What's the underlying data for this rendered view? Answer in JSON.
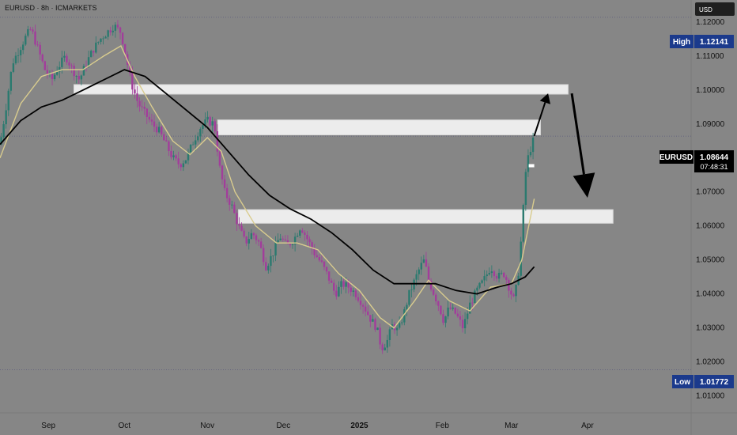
{
  "header": {
    "title": "EURUSD · 8h · ICMARKETS",
    "currency_button": "USD"
  },
  "colors": {
    "background": "#868686",
    "axis_panel": "#868686",
    "candle_up": "#2b7a6f",
    "candle_down": "#a23d9b",
    "ema_fast": "#d9cc8e",
    "ema_slow": "#000000",
    "zone_fill": "#ececec",
    "label_blue": "#1b3a8c",
    "label_black": "#000000"
  },
  "price_labels": {
    "high": {
      "tag": "High",
      "value": "1.12141",
      "price": 1.12141
    },
    "low": {
      "tag": "Low",
      "value": "1.01772",
      "price": 1.01772
    },
    "current": {
      "tag": "EURUSD",
      "value": "1.08644",
      "countdown": "07:48:31",
      "price": 1.08644
    }
  },
  "chart_data": {
    "type": "candlestick",
    "symbol": "EURUSD",
    "timeframe": "8h",
    "broker": "ICMARKETS",
    "y_ticks": [
      "1.01000",
      "1.02000",
      "1.03000",
      "1.04000",
      "1.05000",
      "1.06000",
      "1.07000",
      "1.08000",
      "1.09000",
      "1.10000",
      "1.11000",
      "1.12000"
    ],
    "y_tick_values": [
      1.01,
      1.02,
      1.03,
      1.04,
      1.05,
      1.06,
      1.07,
      1.08,
      1.09,
      1.1,
      1.11,
      1.12
    ],
    "ylim": [
      1.005,
      1.1265
    ],
    "x_ticks": [
      {
        "label": "Sep",
        "t": 0.07
      },
      {
        "label": "Oct",
        "t": 0.18
      },
      {
        "label": "Nov",
        "t": 0.3
      },
      {
        "label": "Dec",
        "t": 0.41
      },
      {
        "label": "2025",
        "t": 0.52
      },
      {
        "label": "Feb",
        "t": 0.64
      },
      {
        "label": "Mar",
        "t": 0.74
      },
      {
        "label": "Apr",
        "t": 0.85
      }
    ],
    "price_series": [
      {
        "t": 0.0,
        "p": 1.084
      },
      {
        "t": 0.008,
        "p": 1.094
      },
      {
        "t": 0.018,
        "p": 1.108
      },
      {
        "t": 0.028,
        "p": 1.112
      },
      {
        "t": 0.038,
        "p": 1.116
      },
      {
        "t": 0.045,
        "p": 1.118
      },
      {
        "t": 0.055,
        "p": 1.112
      },
      {
        "t": 0.065,
        "p": 1.106
      },
      {
        "t": 0.075,
        "p": 1.103
      },
      {
        "t": 0.085,
        "p": 1.107
      },
      {
        "t": 0.095,
        "p": 1.11
      },
      {
        "t": 0.105,
        "p": 1.106
      },
      {
        "t": 0.115,
        "p": 1.103
      },
      {
        "t": 0.125,
        "p": 1.108
      },
      {
        "t": 0.135,
        "p": 1.112
      },
      {
        "t": 0.145,
        "p": 1.115
      },
      {
        "t": 0.155,
        "p": 1.117
      },
      {
        "t": 0.165,
        "p": 1.119
      },
      {
        "t": 0.175,
        "p": 1.117
      },
      {
        "t": 0.182,
        "p": 1.11
      },
      {
        "t": 0.19,
        "p": 1.102
      },
      {
        "t": 0.2,
        "p": 1.096
      },
      {
        "t": 0.21,
        "p": 1.093
      },
      {
        "t": 0.22,
        "p": 1.09
      },
      {
        "t": 0.23,
        "p": 1.088
      },
      {
        "t": 0.24,
        "p": 1.084
      },
      {
        "t": 0.25,
        "p": 1.08
      },
      {
        "t": 0.26,
        "p": 1.078
      },
      {
        "t": 0.27,
        "p": 1.08
      },
      {
        "t": 0.28,
        "p": 1.085
      },
      {
        "t": 0.29,
        "p": 1.089
      },
      {
        "t": 0.3,
        "p": 1.091
      },
      {
        "t": 0.31,
        "p": 1.09
      },
      {
        "t": 0.318,
        "p": 1.077
      },
      {
        "t": 0.325,
        "p": 1.07
      },
      {
        "t": 0.335,
        "p": 1.066
      },
      {
        "t": 0.345,
        "p": 1.06
      },
      {
        "t": 0.355,
        "p": 1.055
      },
      {
        "t": 0.365,
        "p": 1.058
      },
      {
        "t": 0.375,
        "p": 1.055
      },
      {
        "t": 0.385,
        "p": 1.048
      },
      {
        "t": 0.395,
        "p": 1.052
      },
      {
        "t": 0.405,
        "p": 1.057
      },
      {
        "t": 0.415,
        "p": 1.054
      },
      {
        "t": 0.425,
        "p": 1.056
      },
      {
        "t": 0.435,
        "p": 1.06
      },
      {
        "t": 0.445,
        "p": 1.056
      },
      {
        "t": 0.455,
        "p": 1.052
      },
      {
        "t": 0.465,
        "p": 1.049
      },
      {
        "t": 0.475,
        "p": 1.045
      },
      {
        "t": 0.485,
        "p": 1.04
      },
      {
        "t": 0.495,
        "p": 1.043
      },
      {
        "t": 0.505,
        "p": 1.042
      },
      {
        "t": 0.515,
        "p": 1.04
      },
      {
        "t": 0.525,
        "p": 1.037
      },
      {
        "t": 0.535,
        "p": 1.033
      },
      {
        "t": 0.545,
        "p": 1.03
      },
      {
        "t": 0.552,
        "p": 1.024
      },
      {
        "t": 0.56,
        "p": 1.026
      },
      {
        "t": 0.568,
        "p": 1.031
      },
      {
        "t": 0.576,
        "p": 1.029
      },
      {
        "t": 0.584,
        "p": 1.034
      },
      {
        "t": 0.592,
        "p": 1.04
      },
      {
        "t": 0.6,
        "p": 1.044
      },
      {
        "t": 0.608,
        "p": 1.048
      },
      {
        "t": 0.614,
        "p": 1.05
      },
      {
        "t": 0.62,
        "p": 1.044
      },
      {
        "t": 0.628,
        "p": 1.04
      },
      {
        "t": 0.636,
        "p": 1.036
      },
      {
        "t": 0.642,
        "p": 1.032
      },
      {
        "t": 0.65,
        "p": 1.036
      },
      {
        "t": 0.66,
        "p": 1.034
      },
      {
        "t": 0.67,
        "p": 1.03
      },
      {
        "t": 0.68,
        "p": 1.037
      },
      {
        "t": 0.69,
        "p": 1.041
      },
      {
        "t": 0.7,
        "p": 1.044
      },
      {
        "t": 0.71,
        "p": 1.048
      },
      {
        "t": 0.72,
        "p": 1.045
      },
      {
        "t": 0.73,
        "p": 1.046
      },
      {
        "t": 0.738,
        "p": 1.041
      },
      {
        "t": 0.744,
        "p": 1.038
      },
      {
        "t": 0.75,
        "p": 1.046
      },
      {
        "t": 0.756,
        "p": 1.061
      },
      {
        "t": 0.76,
        "p": 1.075
      },
      {
        "t": 0.764,
        "p": 1.08
      },
      {
        "t": 0.768,
        "p": 1.083
      },
      {
        "t": 0.773,
        "p": 1.086
      }
    ],
    "ema_fast": [
      {
        "t": 0.0,
        "p": 1.08
      },
      {
        "t": 0.03,
        "p": 1.096
      },
      {
        "t": 0.06,
        "p": 1.104
      },
      {
        "t": 0.09,
        "p": 1.106
      },
      {
        "t": 0.12,
        "p": 1.106
      },
      {
        "t": 0.15,
        "p": 1.11
      },
      {
        "t": 0.175,
        "p": 1.113
      },
      {
        "t": 0.195,
        "p": 1.104
      },
      {
        "t": 0.22,
        "p": 1.095
      },
      {
        "t": 0.25,
        "p": 1.085
      },
      {
        "t": 0.275,
        "p": 1.081
      },
      {
        "t": 0.3,
        "p": 1.086
      },
      {
        "t": 0.32,
        "p": 1.082
      },
      {
        "t": 0.34,
        "p": 1.07
      },
      {
        "t": 0.37,
        "p": 1.06
      },
      {
        "t": 0.4,
        "p": 1.055
      },
      {
        "t": 0.43,
        "p": 1.055
      },
      {
        "t": 0.46,
        "p": 1.053
      },
      {
        "t": 0.49,
        "p": 1.046
      },
      {
        "t": 0.52,
        "p": 1.041
      },
      {
        "t": 0.55,
        "p": 1.033
      },
      {
        "t": 0.57,
        "p": 1.03
      },
      {
        "t": 0.6,
        "p": 1.038
      },
      {
        "t": 0.62,
        "p": 1.044
      },
      {
        "t": 0.65,
        "p": 1.038
      },
      {
        "t": 0.68,
        "p": 1.035
      },
      {
        "t": 0.71,
        "p": 1.042
      },
      {
        "t": 0.74,
        "p": 1.043
      },
      {
        "t": 0.755,
        "p": 1.05
      },
      {
        "t": 0.765,
        "p": 1.06
      },
      {
        "t": 0.773,
        "p": 1.068
      }
    ],
    "ema_slow": [
      {
        "t": 0.0,
        "p": 1.084
      },
      {
        "t": 0.03,
        "p": 1.091
      },
      {
        "t": 0.06,
        "p": 1.095
      },
      {
        "t": 0.09,
        "p": 1.097
      },
      {
        "t": 0.12,
        "p": 1.1
      },
      {
        "t": 0.15,
        "p": 1.103
      },
      {
        "t": 0.18,
        "p": 1.106
      },
      {
        "t": 0.21,
        "p": 1.104
      },
      {
        "t": 0.24,
        "p": 1.099
      },
      {
        "t": 0.27,
        "p": 1.094
      },
      {
        "t": 0.3,
        "p": 1.089
      },
      {
        "t": 0.33,
        "p": 1.082
      },
      {
        "t": 0.36,
        "p": 1.075
      },
      {
        "t": 0.39,
        "p": 1.069
      },
      {
        "t": 0.42,
        "p": 1.065
      },
      {
        "t": 0.45,
        "p": 1.062
      },
      {
        "t": 0.48,
        "p": 1.058
      },
      {
        "t": 0.51,
        "p": 1.053
      },
      {
        "t": 0.54,
        "p": 1.047
      },
      {
        "t": 0.57,
        "p": 1.043
      },
      {
        "t": 0.6,
        "p": 1.043
      },
      {
        "t": 0.63,
        "p": 1.043
      },
      {
        "t": 0.66,
        "p": 1.041
      },
      {
        "t": 0.69,
        "p": 1.04
      },
      {
        "t": 0.72,
        "p": 1.042
      },
      {
        "t": 0.74,
        "p": 1.043
      },
      {
        "t": 0.76,
        "p": 1.045
      },
      {
        "t": 0.773,
        "p": 1.048
      }
    ],
    "zones": [
      {
        "t0": 0.107,
        "t1": 0.822,
        "p_top": 1.1016,
        "p_bottom": 1.0988
      },
      {
        "t0": 0.315,
        "t1": 0.782,
        "p_top": 1.0912,
        "p_bottom": 1.0868
      },
      {
        "t0": 0.345,
        "t1": 0.887,
        "p_top": 1.0648,
        "p_bottom": 1.0608
      }
    ],
    "reference_lines": [
      {
        "price": 1.12141,
        "style": "dotted"
      },
      {
        "price": 1.01772,
        "style": "dotted"
      },
      {
        "price": 1.08644,
        "style": "dotted"
      }
    ],
    "projection": [
      {
        "t": 0.773,
        "p": 1.0865
      },
      {
        "t": 0.793,
        "p": 1.099
      },
      {
        "t": 0.85,
        "p": 1.0683
      }
    ],
    "grid": false,
    "legend": "none"
  }
}
